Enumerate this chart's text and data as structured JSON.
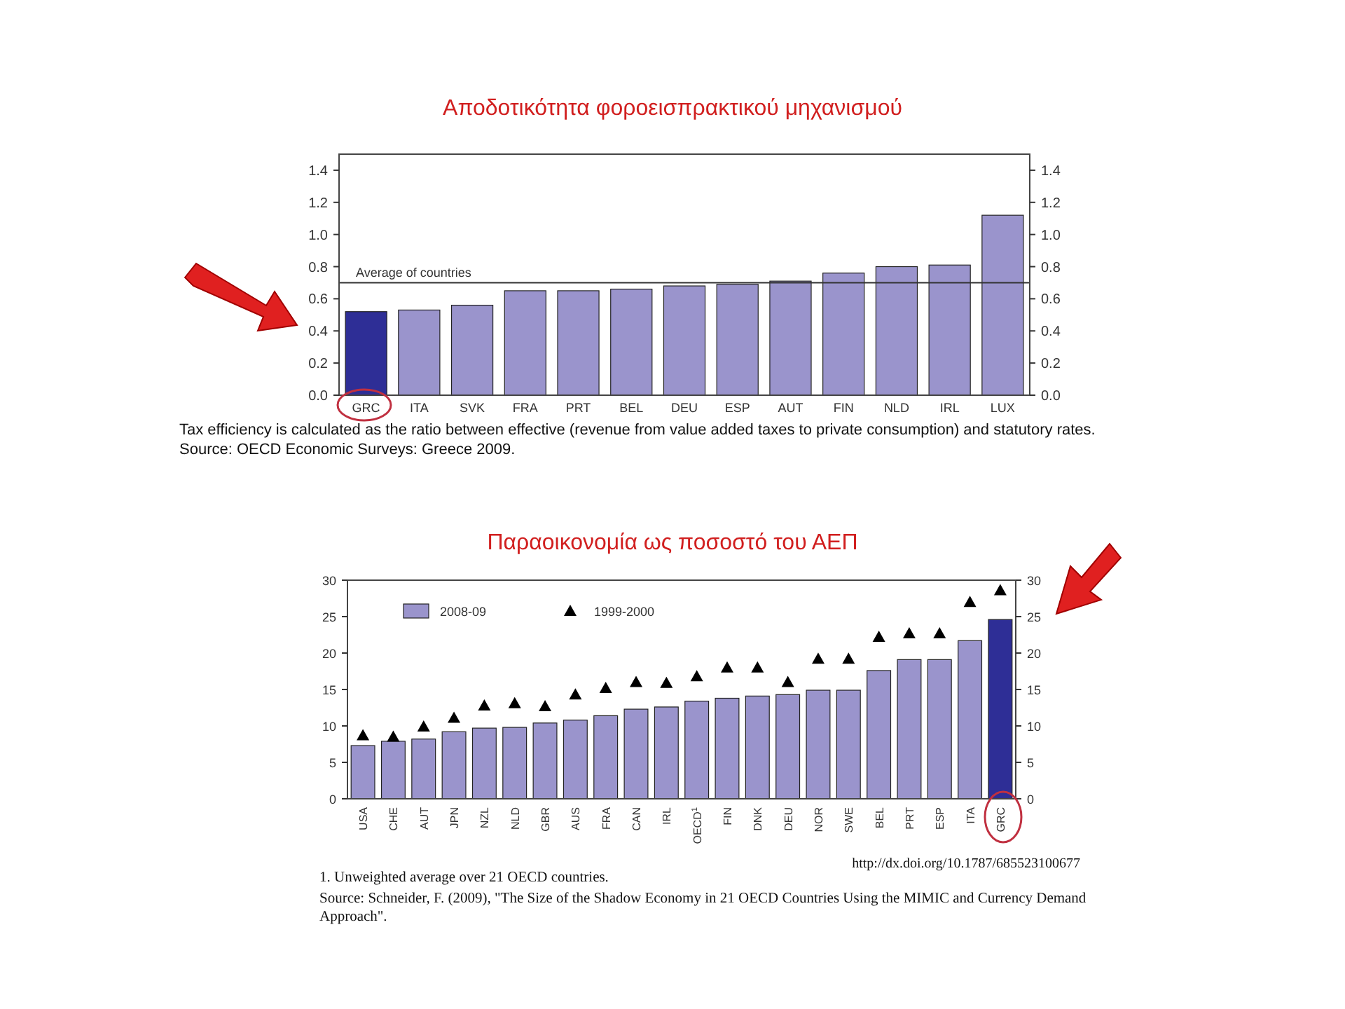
{
  "chart_data": [
    {
      "type": "bar",
      "title": "Αποδοτικότητα φοροεισπρακτικού μηχανισμού",
      "categories": [
        "GRC",
        "ITA",
        "SVK",
        "FRA",
        "PRT",
        "BEL",
        "DEU",
        "ESP",
        "AUT",
        "FIN",
        "NLD",
        "IRL",
        "LUX"
      ],
      "series": [
        {
          "colors": [
            "#2e2e96",
            "#9a94cc",
            "#9a94cc",
            "#9a94cc",
            "#9a94cc",
            "#9a94cc",
            "#9a94cc",
            "#9a94cc",
            "#9a94cc",
            "#9a94cc",
            "#9a94cc",
            "#9a94cc",
            "#9a94cc"
          ],
          "values": [
            0.52,
            0.53,
            0.56,
            0.65,
            0.65,
            0.66,
            0.68,
            0.69,
            0.71,
            0.76,
            0.8,
            0.81,
            1.12
          ]
        }
      ],
      "ylim": [
        0,
        1.5
      ],
      "yticks": [
        "0.0",
        0.2,
        0.4,
        0.6,
        0.8,
        "1.0",
        1.2,
        1.4
      ],
      "y2lim": [
        0,
        1.5
      ],
      "y2ticks": [
        "0.0",
        0.2,
        0.4,
        0.6,
        0.8,
        "1.0",
        1.2,
        1.4
      ],
      "ref_lines": [
        {
          "axis": "y",
          "value": 0.7,
          "label": "Average of countries",
          "color": "#333333"
        }
      ],
      "annotations": [
        "Tax efficiency is calculated as the ratio between effective (revenue from value added taxes to private consumption) and statutory rates.",
        "Source:    OECD Economic Surveys: Greece 2009."
      ]
    },
    {
      "type": "bar",
      "title": "Παραοικονομία ως ποσοστό του ΑΕΠ",
      "categories": [
        "USA",
        "CHE",
        "AUT",
        "JPN",
        "NZL",
        "NLD",
        "GBR",
        "AUS",
        "FRA",
        "CAN",
        "IRL",
        "OECD$^{1}$",
        "FIN",
        "DNK",
        "DEU",
        "NOR",
        "SWE",
        "BEL",
        "PRT",
        "ESP",
        "ITA",
        "GRC"
      ],
      "series": [
        {
          "name": "2008-09",
          "color": "#9a94cc",
          "colors": [
            "#9a94cc",
            "#9a94cc",
            "#9a94cc",
            "#9a94cc",
            "#9a94cc",
            "#9a94cc",
            "#9a94cc",
            "#9a94cc",
            "#9a94cc",
            "#9a94cc",
            "#9a94cc",
            "#9a94cc",
            "#9a94cc",
            "#9a94cc",
            "#9a94cc",
            "#9a94cc",
            "#9a94cc",
            "#9a94cc",
            "#9a94cc",
            "#9a94cc",
            "#9a94cc",
            "#2e2e96"
          ],
          "values": [
            7.3,
            7.9,
            8.2,
            9.2,
            9.7,
            9.8,
            10.4,
            10.8,
            11.4,
            12.3,
            12.6,
            13.4,
            13.8,
            14.1,
            14.3,
            14.9,
            14.9,
            17.6,
            19.1,
            19.1,
            21.7,
            24.6
          ]
        },
        {
          "name": "1999-2000",
          "type": "scatter",
          "marker": "triangle",
          "color": "#000000",
          "x": [
            "USA",
            "CHE",
            "AUT",
            "JPN",
            "NZL",
            "NLD",
            "GBR",
            "AUS",
            "FRA",
            "CAN",
            "IRL",
            "OECD$^{1}$",
            "FIN",
            "DNK",
            "DEU",
            "NOR",
            "SWE",
            "BEL",
            "PRT",
            "ESP",
            "ITA",
            "GRC"
          ],
          "values": [
            8.7,
            8.5,
            9.9,
            11.1,
            12.8,
            13.1,
            12.7,
            14.3,
            15.2,
            16.0,
            15.9,
            16.8,
            18.0,
            18.0,
            16.0,
            19.2,
            19.2,
            22.2,
            22.7,
            22.7,
            27.0,
            28.6
          ]
        }
      ],
      "ylim": [
        0,
        30
      ],
      "yticks": [
        0,
        5,
        10,
        15,
        20,
        25,
        30
      ],
      "y2lim": [
        0,
        30
      ],
      "y2ticks": [
        0,
        5,
        10,
        15,
        20,
        25,
        30
      ],
      "legend": "top left",
      "annotations": [
        "http://dx.doi.org/10.1787/685523100677",
        "1.   Unweighted average over 21 OECD countries.",
        "Source: Schneider, F. (2009), \"The Size of the Shadow Economy in 21 OECD Countries Using the MIMIC and Currency Demand Approach\"."
      ]
    }
  ]
}
